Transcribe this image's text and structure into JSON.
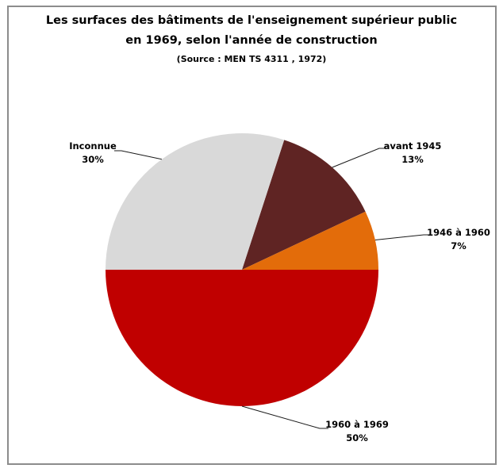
{
  "chart_data": {
    "type": "pie",
    "title_line1": "Les surfaces des bâtiments de l'enseignement supérieur public",
    "title_line2": "en 1969, selon l'année de construction",
    "source": "(Source : MEN TS 4311 ,  1972)",
    "unit": "%",
    "start_angle_deg": 18,
    "direction": "clockwise",
    "legend": "none",
    "labels_position": "outside-with-leader-lines",
    "categories": [
      "avant 1945",
      "1946 à 1960",
      "1960 à 1969",
      "Inconnue"
    ],
    "values": [
      13,
      7,
      50,
      30
    ],
    "slices": [
      {
        "label": "avant 1945",
        "value": 13,
        "pct_label": "13%",
        "color": "#5f2423"
      },
      {
        "label": "1946 à 1960",
        "value": 7,
        "pct_label": "7%",
        "color": "#e36c0a"
      },
      {
        "label": "1960 à 1969",
        "value": 50,
        "pct_label": "50%",
        "color": "#c00000"
      },
      {
        "label": "Inconnue",
        "value": 30,
        "pct_label": "30%",
        "color": "#d9d9d9"
      }
    ],
    "leader_line_color": "#1a1a1a"
  }
}
